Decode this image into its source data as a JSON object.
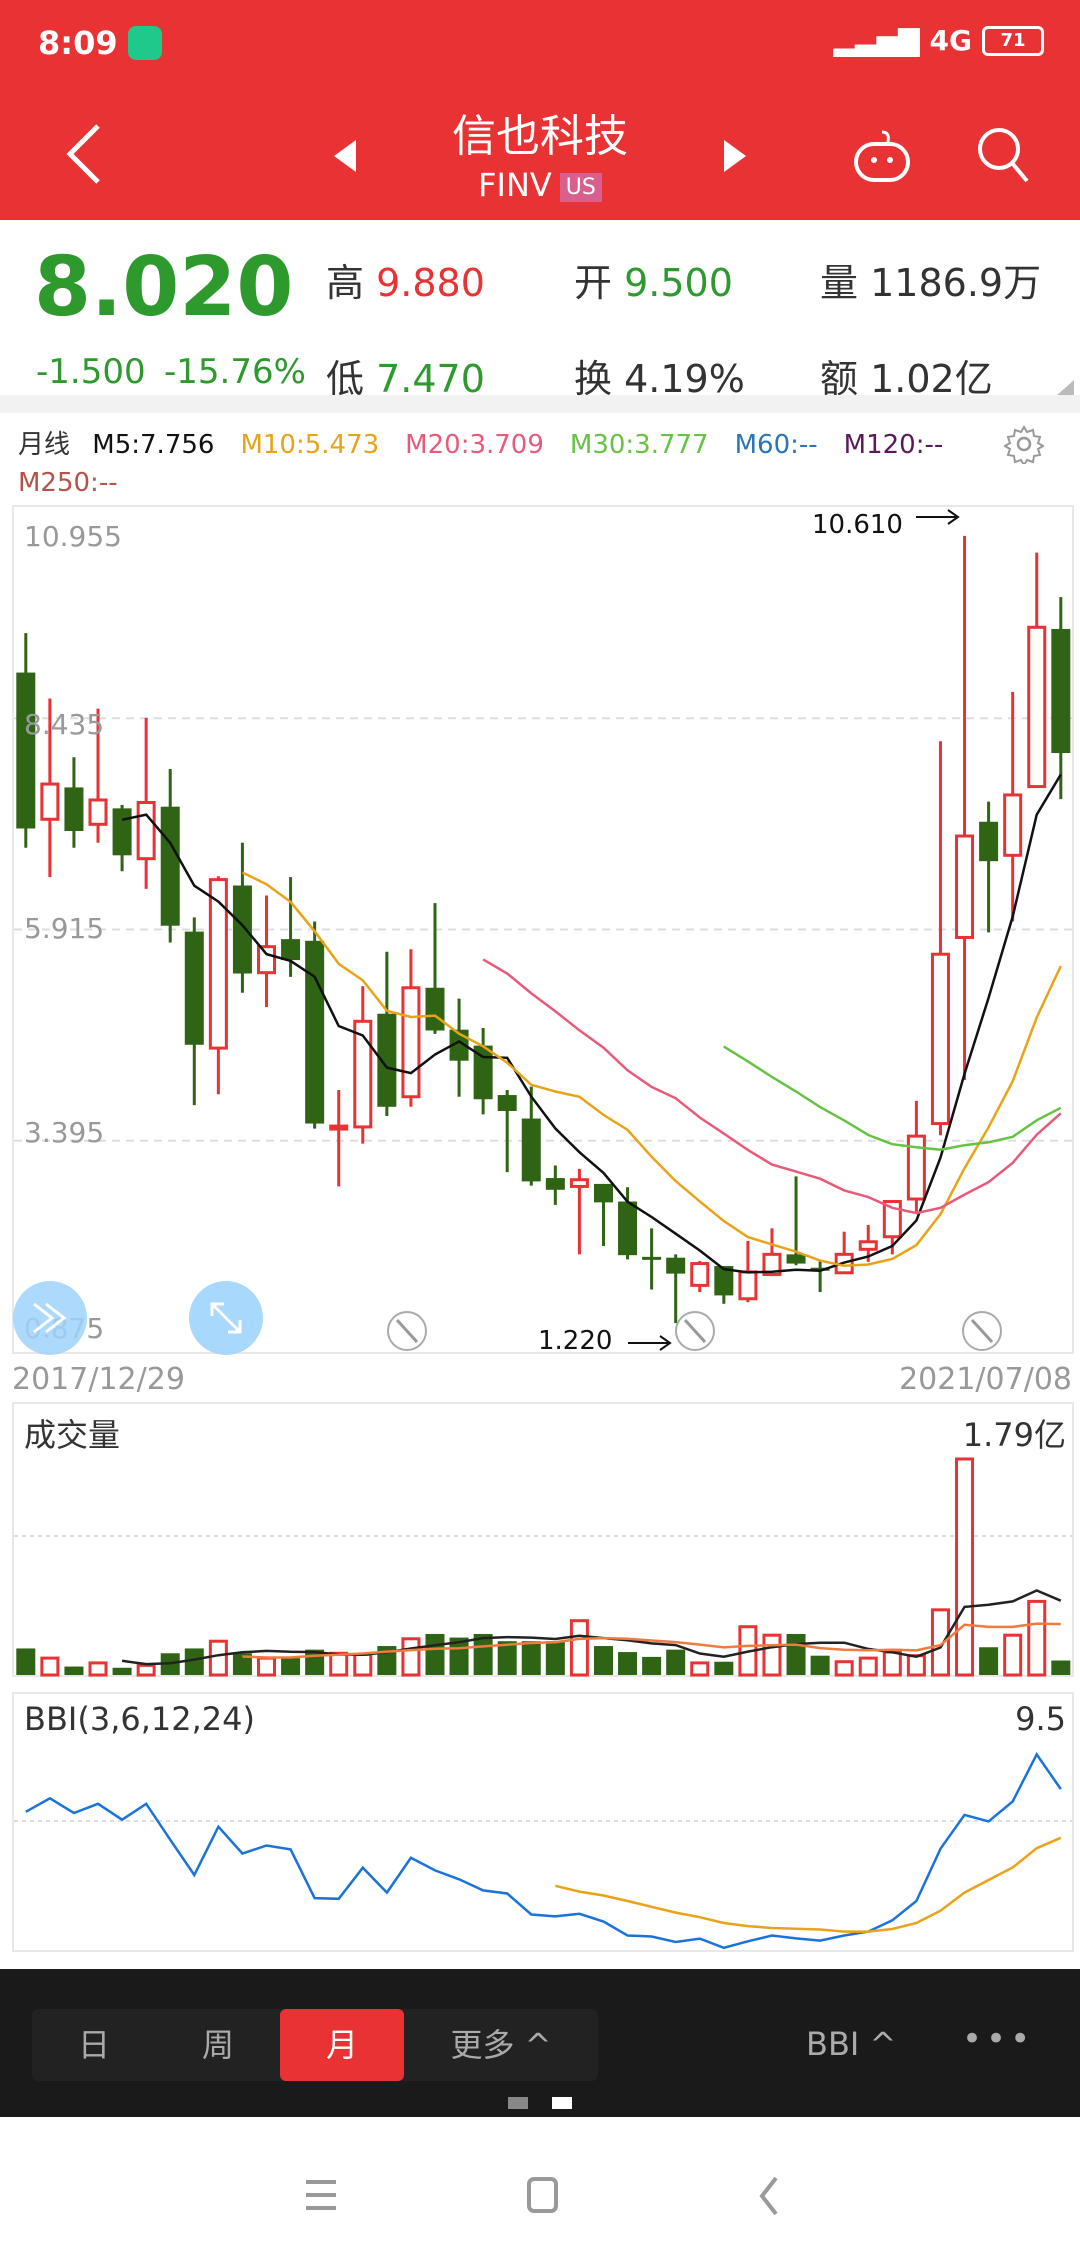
{
  "status_bar": {
    "time": "8:09",
    "network": "4G",
    "battery": "71"
  },
  "header": {
    "title": "信也科技",
    "ticker": "FINV",
    "market_badge": "US"
  },
  "quote": {
    "price": "8.020",
    "change": "-1.500",
    "change_pct": "-15.76%",
    "high_label": "高",
    "high": "9.880",
    "open_label": "开",
    "open": "9.500",
    "volume_label": "量",
    "volume": "1186.9万",
    "low_label": "低",
    "low": "7.470",
    "turnover_label": "换",
    "turnover": "4.19%",
    "amount_label": "额",
    "amount": "1.02亿"
  },
  "ma_legend": {
    "period": "月线",
    "items": [
      {
        "label": "M5:7.756",
        "color": "#111111"
      },
      {
        "label": "M10:5.473",
        "color": "#e8a317"
      },
      {
        "label": "M20:3.709",
        "color": "#e85a7a"
      },
      {
        "label": "M30:3.777",
        "color": "#66c244"
      },
      {
        "label": "M60:--",
        "color": "#2a75b8"
      },
      {
        "label": "M120:--",
        "color": "#5a1a5a"
      },
      {
        "label": "M250:--",
        "color": "#b5534a"
      }
    ]
  },
  "chart_data": [
    {
      "type": "candlestick",
      "title": "",
      "y_ticks": [
        "10.955",
        "8.435",
        "5.915",
        "3.395",
        "0.875"
      ],
      "ylim": [
        0.875,
        10.955
      ],
      "x_start": "2017/12/29",
      "x_end": "2021/07/08",
      "annotations": {
        "max": "10.610",
        "min": "1.220"
      },
      "up_color": "#e83234",
      "down_color": "#2f6414",
      "ma_periods": [
        5,
        10,
        20,
        30
      ],
      "ma_colors": [
        "#111111",
        "#e8a317",
        "#e85a7a",
        "#66c244"
      ],
      "ohlc": [
        [
          8.98,
          9.45,
          6.89,
          7.12
        ],
        [
          7.23,
          8.67,
          6.54,
          7.65
        ],
        [
          7.61,
          7.97,
          6.89,
          7.09
        ],
        [
          7.17,
          8.55,
          6.95,
          7.46
        ],
        [
          7.36,
          7.4,
          6.61,
          6.8
        ],
        [
          6.76,
          8.44,
          6.4,
          7.43
        ],
        [
          7.38,
          7.83,
          5.76,
          5.96
        ],
        [
          5.89,
          6.06,
          3.82,
          4.54
        ],
        [
          4.5,
          6.55,
          3.95,
          6.51
        ],
        [
          6.44,
          6.95,
          5.16,
          5.39
        ],
        [
          5.4,
          6.32,
          4.99,
          5.71
        ],
        [
          5.8,
          6.54,
          5.35,
          5.55
        ],
        [
          5.78,
          6.01,
          3.54,
          3.6
        ],
        [
          3.55,
          4.0,
          2.85,
          3.57
        ],
        [
          3.56,
          5.24,
          3.36,
          4.82
        ],
        [
          4.91,
          5.65,
          3.69,
          3.8
        ],
        [
          3.92,
          5.68,
          3.8,
          5.22
        ],
        [
          5.22,
          6.23,
          4.67,
          4.71
        ],
        [
          4.72,
          5.09,
          3.92,
          4.35
        ],
        [
          4.53,
          4.74,
          3.71,
          3.89
        ],
        [
          3.94,
          4.0,
          3.02,
          3.75
        ],
        [
          3.66,
          4.04,
          2.86,
          2.91
        ],
        [
          2.95,
          3.1,
          2.63,
          2.81
        ],
        [
          2.85,
          3.06,
          2.04,
          2.93
        ],
        [
          2.88,
          2.88,
          2.14,
          2.66
        ],
        [
          2.67,
          2.84,
          1.98,
          2.03
        ],
        [
          2.01,
          2.35,
          1.62,
          2.0
        ],
        [
          2.0,
          2.04,
          1.22,
          1.81
        ],
        [
          1.67,
          1.96,
          1.59,
          1.93
        ],
        [
          1.9,
          1.9,
          1.45,
          1.55
        ],
        [
          1.51,
          2.2,
          1.47,
          1.83
        ],
        [
          1.8,
          2.35,
          1.78,
          2.04
        ],
        [
          2.04,
          2.97,
          1.91,
          1.93
        ],
        [
          1.88,
          1.97,
          1.59,
          1.87
        ],
        [
          1.82,
          2.31,
          1.81,
          2.04
        ],
        [
          2.1,
          2.39,
          1.95,
          2.19
        ],
        [
          2.25,
          2.67,
          2.04,
          2.67
        ],
        [
          2.7,
          3.87,
          2.55,
          3.45
        ],
        [
          3.6,
          8.16,
          3.46,
          5.62
        ],
        [
          5.82,
          10.61,
          4.12,
          7.03
        ],
        [
          7.2,
          7.44,
          5.88,
          6.73
        ],
        [
          6.8,
          8.75,
          6.01,
          7.52
        ],
        [
          7.62,
          10.41,
          7.61,
          9.52
        ],
        [
          9.5,
          9.88,
          7.47,
          8.02
        ]
      ]
    },
    {
      "type": "bar",
      "title": "成交量",
      "max_label": "1.79亿",
      "unit": "亿",
      "ylim": [
        0,
        1.79
      ],
      "ma_colors": [
        "#222222",
        "#f07b3f"
      ],
      "values": [
        0.22,
        0.14,
        0.07,
        0.1,
        0.06,
        0.08,
        0.18,
        0.22,
        0.28,
        0.18,
        0.14,
        0.14,
        0.21,
        0.18,
        0.17,
        0.24,
        0.3,
        0.34,
        0.31,
        0.34,
        0.28,
        0.28,
        0.28,
        0.45,
        0.24,
        0.19,
        0.15,
        0.21,
        0.1,
        0.11,
        0.4,
        0.33,
        0.34,
        0.16,
        0.11,
        0.14,
        0.19,
        0.16,
        0.54,
        1.79,
        0.23,
        0.33,
        0.61,
        0.12
      ]
    },
    {
      "type": "line",
      "title": "BBI(3,6,12,24)",
      "max_label": "9.5",
      "ylim": [
        1.0,
        9.5
      ],
      "series": [
        {
          "color": "#1a73d9",
          "values": [
            6.69,
            7.25,
            6.64,
            7.02,
            6.36,
            7.02,
            5.53,
            4.07,
            6.07,
            4.96,
            5.29,
            5.13,
            3.11,
            3.08,
            4.37,
            3.34,
            4.78,
            4.26,
            3.89,
            3.43,
            3.3,
            2.43,
            2.35,
            2.46,
            2.14,
            1.56,
            1.52,
            1.29,
            1.43,
            1.05,
            1.32,
            1.56,
            1.44,
            1.35,
            1.56,
            1.72,
            2.19,
            2.99,
            5.16,
            6.56,
            6.29,
            7.12,
            9.07,
            7.63
          ]
        },
        {
          "color": "#e8a317",
          "values": [
            null,
            null,
            null,
            null,
            null,
            null,
            null,
            null,
            null,
            null,
            null,
            null,
            null,
            null,
            null,
            null,
            null,
            null,
            null,
            null,
            null,
            null,
            3.62,
            3.38,
            3.22,
            2.99,
            2.75,
            2.51,
            2.32,
            2.08,
            1.95,
            1.87,
            1.84,
            1.81,
            1.72,
            1.72,
            1.83,
            2.08,
            2.59,
            3.34,
            3.86,
            4.38,
            5.18,
            5.61
          ]
        }
      ]
    }
  ],
  "bottom_bar": {
    "tabs": [
      {
        "label": "日"
      },
      {
        "label": "周"
      },
      {
        "label": "月",
        "active": true
      },
      {
        "label": "更多 ^"
      }
    ],
    "indicator": "BBI ^",
    "more": "•••"
  }
}
